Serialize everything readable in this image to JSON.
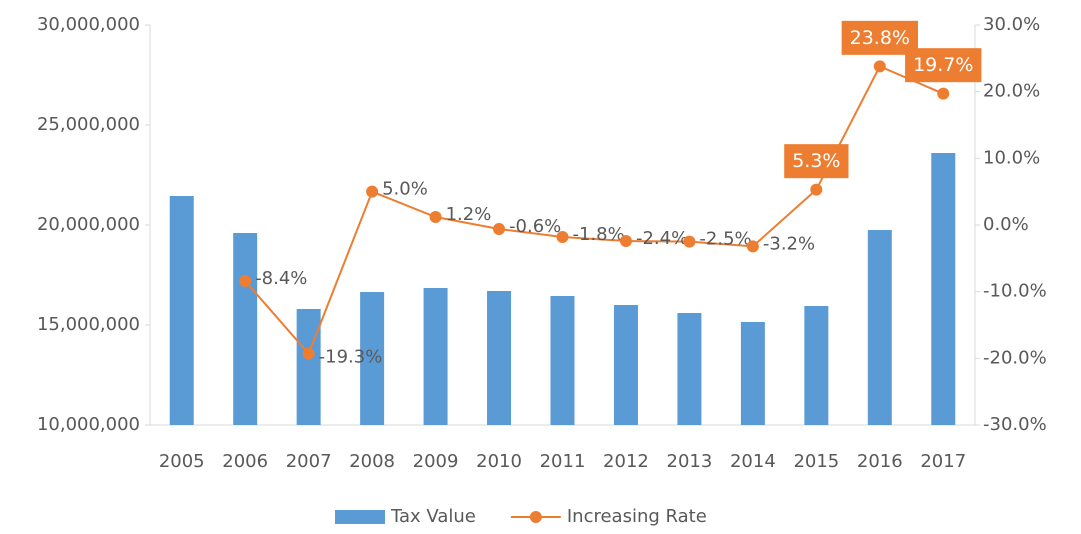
{
  "chart_data": {
    "type": "bar_line",
    "categories": [
      "2005",
      "2006",
      "2007",
      "2008",
      "2009",
      "2010",
      "2011",
      "2012",
      "2013",
      "2014",
      "2015",
      "2016",
      "2017"
    ],
    "series": [
      {
        "name": "Tax Value",
        "color": "#5b9bd5",
        "type": "bar",
        "values": [
          21450000,
          19600000,
          15800000,
          16650000,
          16850000,
          16700000,
          16450000,
          16000000,
          15600000,
          15150000,
          15950000,
          19750000,
          23600000
        ]
      },
      {
        "name": "Increasing Rate",
        "color": "#ed7d31",
        "type": "line",
        "axis": "y2",
        "values": [
          null,
          -8.4,
          -19.3,
          5.0,
          1.2,
          -0.6,
          -1.8,
          -2.4,
          -2.5,
          -3.2,
          5.3,
          23.8,
          19.7
        ],
        "value_labels": [
          null,
          "-8.4%",
          "-19.3%",
          "5.0%",
          "1.2%",
          "-0.6%",
          "-1.8%",
          "-2.4%",
          "-2.5%",
          "-3.2%",
          "5.3%",
          "23.8%",
          "19.7%"
        ],
        "highlighted_labels": [
          10,
          11,
          12
        ]
      }
    ],
    "ylim": [
      10000000,
      30000000
    ],
    "yticks": [
      {
        "value": 10000000,
        "label": "10,000,000"
      },
      {
        "value": 15000000,
        "label": "15,000,000"
      },
      {
        "value": 20000000,
        "label": "20,000,000"
      },
      {
        "value": 25000000,
        "label": "25,000,000"
      },
      {
        "value": 30000000,
        "label": "30,000,000"
      }
    ],
    "y2lim": [
      -30,
      30
    ],
    "y2ticks": [
      {
        "value": -30,
        "label": "-30.0%"
      },
      {
        "value": -20,
        "label": "-20.0%"
      },
      {
        "value": -10,
        "label": "-10.0%"
      },
      {
        "value": 0,
        "label": "0.0%"
      },
      {
        "value": 10,
        "label": "10.0%"
      },
      {
        "value": 20,
        "label": "20.0%"
      },
      {
        "value": 30,
        "label": "30.0%"
      }
    ],
    "legend": "bottom"
  }
}
